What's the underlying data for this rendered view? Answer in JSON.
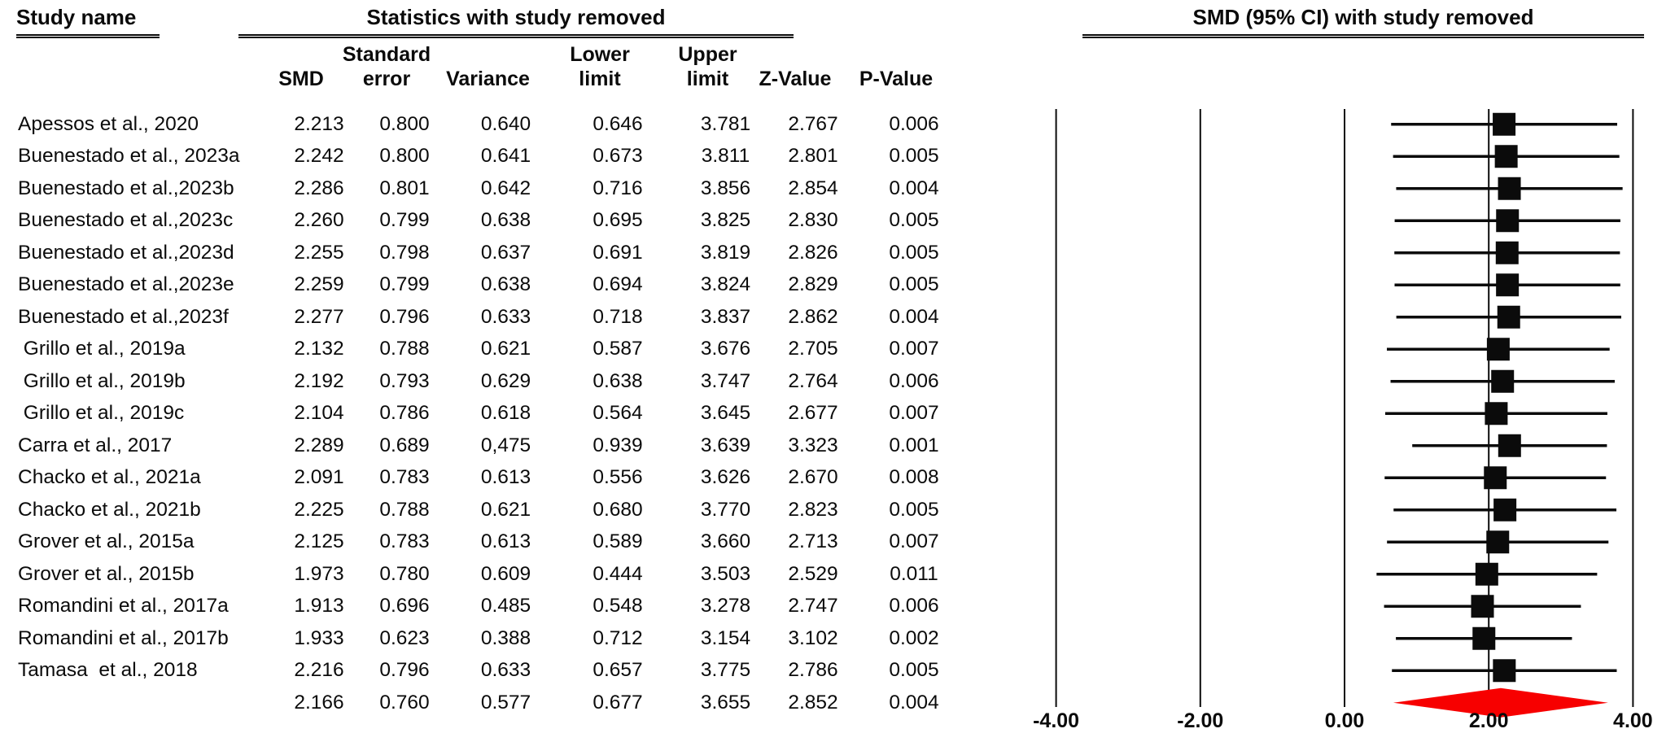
{
  "headers": {
    "study_name": "Study name",
    "stats_title": "Statistics with study removed",
    "plot_title": "SMD (95% CI) with study removed"
  },
  "columns": [
    {
      "key": "smd",
      "line1": "",
      "line2": "SMD"
    },
    {
      "key": "se",
      "line1": "Standard",
      "line2": "error"
    },
    {
      "key": "variance",
      "line1": "",
      "line2": "Variance"
    },
    {
      "key": "lower",
      "line1": "Lower",
      "line2": "limit"
    },
    {
      "key": "upper",
      "line1": "Upper",
      "line2": "limit"
    },
    {
      "key": "z",
      "line1": "",
      "line2": "Z-Value"
    },
    {
      "key": "p",
      "line1": "",
      "line2": "P-Value"
    }
  ],
  "chart_data": {
    "type": "forest",
    "title": "SMD (95% CI) with study removed",
    "axis_values": [
      -4,
      -2,
      0,
      2,
      4
    ],
    "axis_ticks": [
      "-4.00",
      "-2.00",
      "0.00",
      "2.00",
      "4.00"
    ],
    "axis_range": [
      -4,
      4
    ],
    "grid": true,
    "marker_color": "#0b0b0b",
    "summary_color": "#f70000",
    "studies": [
      {
        "name": "Apessos et al., 2020",
        "smd": "2.213",
        "se": "0.800",
        "variance": "0.640",
        "lower": "0.646",
        "upper": "3.781",
        "z": "2.767",
        "p": "0.006"
      },
      {
        "name": "Buenestado et al., 2023a",
        "smd": "2.242",
        "se": "0.800",
        "variance": "0.641",
        "lower": "0.673",
        "upper": "3.811",
        "z": "2.801",
        "p": "0.005"
      },
      {
        "name": "Buenestado et al.,2023b",
        "smd": "2.286",
        "se": "0.801",
        "variance": "0.642",
        "lower": "0.716",
        "upper": "3.856",
        "z": "2.854",
        "p": "0.004"
      },
      {
        "name": "Buenestado et al.,2023c",
        "smd": "2.260",
        "se": "0.799",
        "variance": "0.638",
        "lower": "0.695",
        "upper": "3.825",
        "z": "2.830",
        "p": "0.005"
      },
      {
        "name": "Buenestado et al.,2023d",
        "smd": "2.255",
        "se": "0.798",
        "variance": "0.637",
        "lower": "0.691",
        "upper": "3.819",
        "z": "2.826",
        "p": "0.005"
      },
      {
        "name": "Buenestado et al.,2023e",
        "smd": "2.259",
        "se": "0.799",
        "variance": "0.638",
        "lower": "0.694",
        "upper": "3.824",
        "z": "2.829",
        "p": "0.005"
      },
      {
        "name": "Buenestado et al.,2023f",
        "smd": "2.277",
        "se": "0.796",
        "variance": "0.633",
        "lower": "0.718",
        "upper": "3.837",
        "z": "2.862",
        "p": "0.004"
      },
      {
        "name": " Grillo et al., 2019a",
        "smd": "2.132",
        "se": "0.788",
        "variance": "0.621",
        "lower": "0.587",
        "upper": "3.676",
        "z": "2.705",
        "p": "0.007"
      },
      {
        "name": " Grillo et al., 2019b",
        "smd": "2.192",
        "se": "0.793",
        "variance": "0.629",
        "lower": "0.638",
        "upper": "3.747",
        "z": "2.764",
        "p": "0.006"
      },
      {
        "name": " Grillo et al., 2019c",
        "smd": "2.104",
        "se": "0.786",
        "variance": "0.618",
        "lower": "0.564",
        "upper": "3.645",
        "z": "2.677",
        "p": "0.007"
      },
      {
        "name": "Carra et al., 2017",
        "smd": "2.289",
        "se": "0.689",
        "variance": "0,475",
        "lower": "0.939",
        "upper": "3.639",
        "z": "3.323",
        "p": "0.001"
      },
      {
        "name": "Chacko et al., 2021a",
        "smd": "2.091",
        "se": "0.783",
        "variance": "0.613",
        "lower": "0.556",
        "upper": "3.626",
        "z": "2.670",
        "p": "0.008"
      },
      {
        "name": "Chacko et al., 2021b",
        "smd": "2.225",
        "se": "0.788",
        "variance": "0.621",
        "lower": "0.680",
        "upper": "3.770",
        "z": "2.823",
        "p": "0.005"
      },
      {
        "name": "Grover et al., 2015a",
        "smd": "2.125",
        "se": "0.783",
        "variance": "0.613",
        "lower": "0.589",
        "upper": "3.660",
        "z": "2.713",
        "p": "0.007"
      },
      {
        "name": "Grover et al., 2015b",
        "smd": "1.973",
        "se": "0.780",
        "variance": "0.609",
        "lower": "0.444",
        "upper": "3.503",
        "z": "2.529",
        "p": "0.011"
      },
      {
        "name": "Romandini et al., 2017a",
        "smd": "1.913",
        "se": "0.696",
        "variance": "0.485",
        "lower": "0.548",
        "upper": "3.278",
        "z": "2.747",
        "p": "0.006"
      },
      {
        "name": "Romandini et al., 2017b",
        "smd": "1.933",
        "se": "0.623",
        "variance": "0.388",
        "lower": "0.712",
        "upper": "3.154",
        "z": "3.102",
        "p": "0.002"
      },
      {
        "name": "Tamasa  et al., 2018",
        "smd": "2.216",
        "se": "0.796",
        "variance": "0.633",
        "lower": "0.657",
        "upper": "3.775",
        "z": "2.786",
        "p": "0.005"
      }
    ],
    "summary": {
      "name": "",
      "smd": "2.166",
      "se": "0.760",
      "variance": "0.577",
      "lower": "0.677",
      "upper": "3.655",
      "z": "2.852",
      "p": "0.004"
    }
  }
}
